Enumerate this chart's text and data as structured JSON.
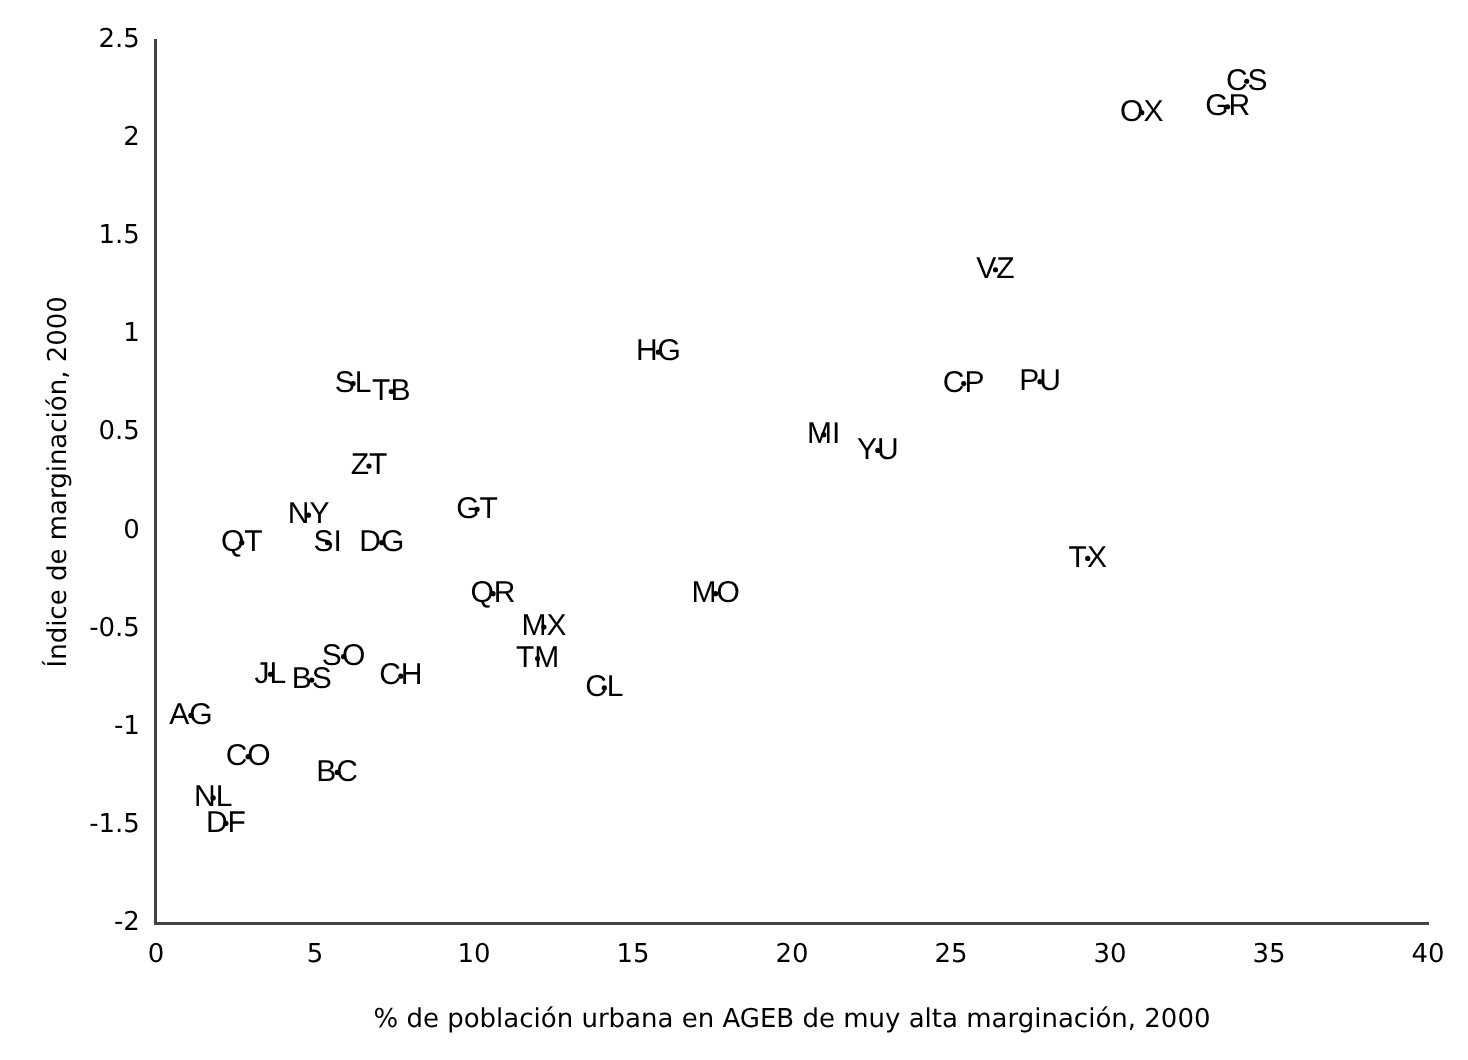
{
  "chart_data": {
    "type": "scatter",
    "xlabel": "% de población urbana en AGEB de muy alta marginación, 2000",
    "ylabel": "Índice de marginación, 2000",
    "xlim": [
      0,
      40
    ],
    "ylim": [
      -2,
      2.5
    ],
    "xticks": [
      0,
      5,
      10,
      15,
      20,
      25,
      30,
      35,
      40
    ],
    "yticks": [
      -2,
      -1.5,
      -1,
      -0.5,
      0,
      0.5,
      1,
      1.5,
      2,
      2.5
    ],
    "grid": false,
    "legend": false,
    "series": [
      {
        "color": "#000000",
        "x": [
          34.3,
          33.7,
          31.0,
          26.4,
          25.4,
          27.8,
          21.0,
          22.7,
          29.3,
          15.8,
          17.6,
          10.6,
          12.2,
          12.0,
          14.1,
          10.1,
          6.2,
          7.4,
          6.7,
          4.8,
          5.4,
          7.1,
          2.7,
          5.9,
          4.9,
          3.6,
          7.7,
          1.1,
          2.9,
          5.7,
          1.8,
          2.2
        ],
        "values": [
          2.29,
          2.16,
          2.13,
          1.33,
          0.75,
          0.76,
          0.49,
          0.41,
          -0.14,
          0.91,
          -0.32,
          -0.32,
          -0.49,
          -0.65,
          -0.8,
          0.11,
          0.75,
          0.71,
          0.33,
          0.08,
          -0.06,
          -0.06,
          -0.06,
          -0.64,
          -0.76,
          -0.73,
          -0.74,
          -0.94,
          -1.15,
          -1.23,
          -1.36,
          -1.49
        ],
        "value_labels": [
          "CS",
          "GR",
          "OX",
          "VZ",
          "CP",
          "PU",
          "MI",
          "YU",
          "TX",
          "HG",
          "MO",
          "QR",
          "MX",
          "TM",
          "CL",
          "GT",
          "SL",
          "TB",
          "ZT",
          "NY",
          "SI",
          "DG",
          "QT",
          "SO",
          "BS",
          "JL",
          "CH",
          "AG",
          "CO",
          "BC",
          "NL",
          "DF"
        ]
      }
    ]
  }
}
